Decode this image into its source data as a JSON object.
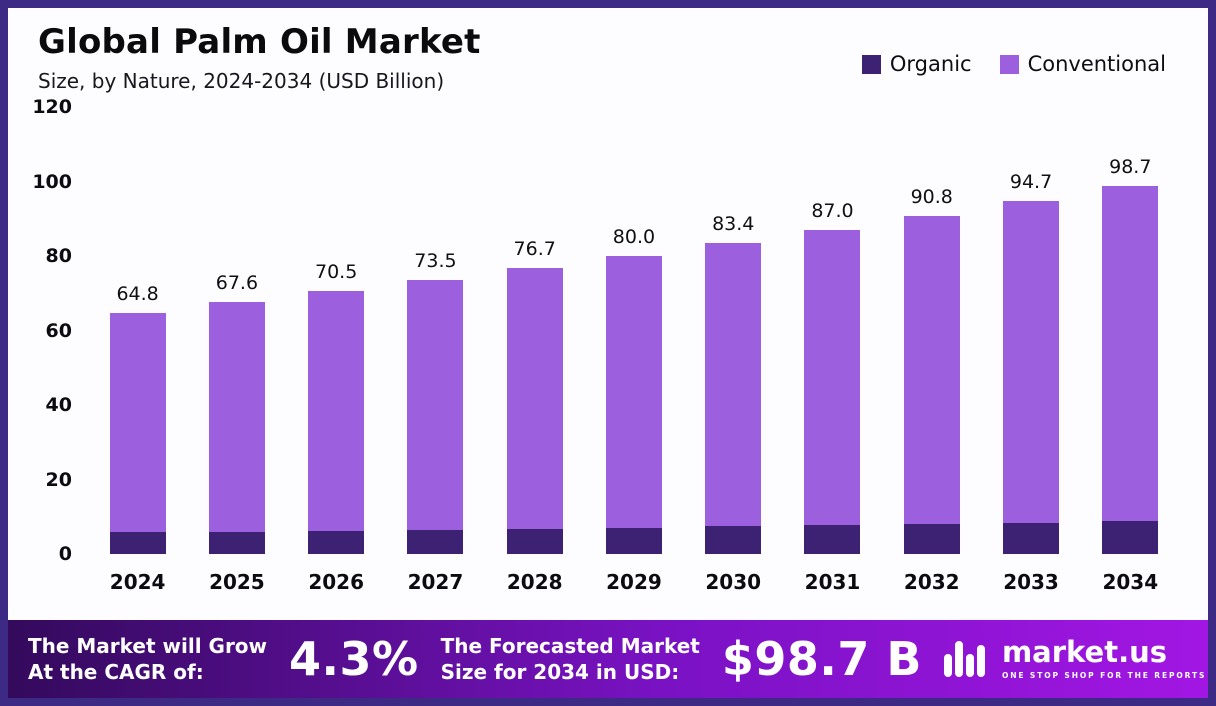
{
  "header": {
    "title": "Global Palm Oil Market",
    "subtitle": "Size, by Nature, 2024-2034 (USD Billion)"
  },
  "legend": [
    {
      "label": "Organic",
      "color": "#3d2173"
    },
    {
      "label": "Conventional",
      "color": "#9c5fdd"
    }
  ],
  "chart_data": {
    "type": "bar",
    "stacked": true,
    "title": "Global Palm Oil Market",
    "subtitle": "Size, by Nature, 2024-2034 (USD Billion)",
    "unit": "USD Billion",
    "categories": [
      "2024",
      "2025",
      "2026",
      "2027",
      "2028",
      "2029",
      "2030",
      "2031",
      "2032",
      "2033",
      "2034"
    ],
    "series": [
      {
        "name": "Organic",
        "color": "#3d2173",
        "values": [
          5.8,
          6.0,
          6.3,
          6.5,
          6.8,
          7.1,
          7.4,
          7.7,
          8.1,
          8.4,
          8.8
        ]
      },
      {
        "name": "Conventional",
        "color": "#9c5fdd",
        "values": [
          59.0,
          61.6,
          64.2,
          67.0,
          69.9,
          72.9,
          76.0,
          79.3,
          82.7,
          86.3,
          89.9
        ]
      }
    ],
    "totals": [
      64.8,
      67.6,
      70.5,
      73.5,
      76.7,
      80.0,
      83.4,
      87.0,
      90.8,
      94.7,
      98.7
    ],
    "total_labels": [
      "64.8",
      "67.6",
      "70.5",
      "73.5",
      "76.7",
      "80.0",
      "83.4",
      "87.0",
      "90.8",
      "94.7",
      "98.7"
    ],
    "xlabel": "",
    "ylabel": "",
    "yticks": [
      0,
      20,
      40,
      60,
      80,
      100,
      120
    ],
    "ylim": [
      0,
      120
    ],
    "grid": false,
    "legend_position": "top-right"
  },
  "footer": {
    "cagr_label_line1": "The Market will Grow",
    "cagr_label_line2": "At the CAGR of:",
    "cagr_value": "4.3%",
    "forecast_label_line1": "The Forecasted Market",
    "forecast_label_line2": "Size for 2034 in USD:",
    "forecast_value": "$98.7 B",
    "brand": {
      "name": "market.us",
      "tagline": "ONE STOP SHOP FOR THE REPORTS"
    }
  },
  "colors": {
    "frame_border": "#3c2a85",
    "background": "#fdfcff",
    "footer_gradient_left": "#330a5c",
    "footer_gradient_mid": "#7a12c4",
    "footer_gradient_right": "#a216e3",
    "organic": "#3d2173",
    "conventional": "#9c5fdd",
    "text": "#0d0d12"
  }
}
